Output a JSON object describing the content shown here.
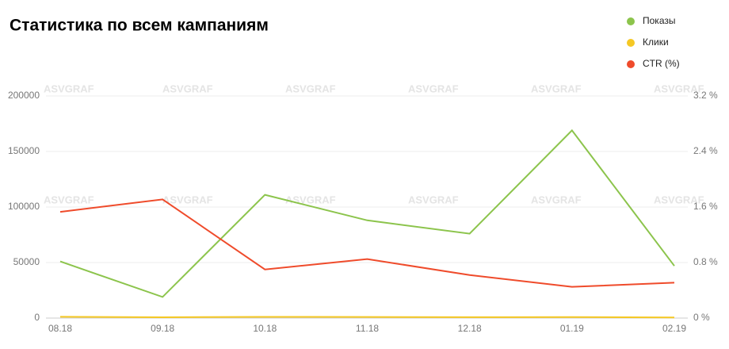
{
  "chart_data": {
    "type": "line",
    "title": "Статистика по всем кампаниям",
    "watermark": "ASVGRAF",
    "categories": [
      "08.18",
      "09.18",
      "10.18",
      "11.18",
      "12.18",
      "01.19",
      "02.19"
    ],
    "series": [
      {
        "name": "Показы",
        "color": "#8cc44c",
        "values": [
          51000,
          19000,
          111000,
          88000,
          76000,
          169000,
          47000
        ]
      },
      {
        "name": "Клики",
        "color": "#f5c824",
        "values": [
          1200,
          700,
          1100,
          1000,
          800,
          900,
          500
        ]
      },
      {
        "name": "CTR (%)",
        "color": "#ef4b2b",
        "axis": "y2",
        "values": [
          1.53,
          1.71,
          0.7,
          0.85,
          0.62,
          0.45,
          0.51
        ]
      }
    ],
    "ylim": [
      0,
      200000
    ],
    "yticks": [
      0,
      50000,
      100000,
      150000,
      200000
    ],
    "y2lim": [
      0,
      3.2
    ],
    "y2ticks": [
      {
        "value": 0,
        "label": "0 %"
      },
      {
        "value": 0.8,
        "label": "0.8 %"
      },
      {
        "value": 1.6,
        "label": "1.6 %"
      },
      {
        "value": 2.4,
        "label": "2.4 %"
      },
      {
        "value": 3.2,
        "label": "3.2 %"
      }
    ],
    "grid": true,
    "legend": "top-right"
  }
}
